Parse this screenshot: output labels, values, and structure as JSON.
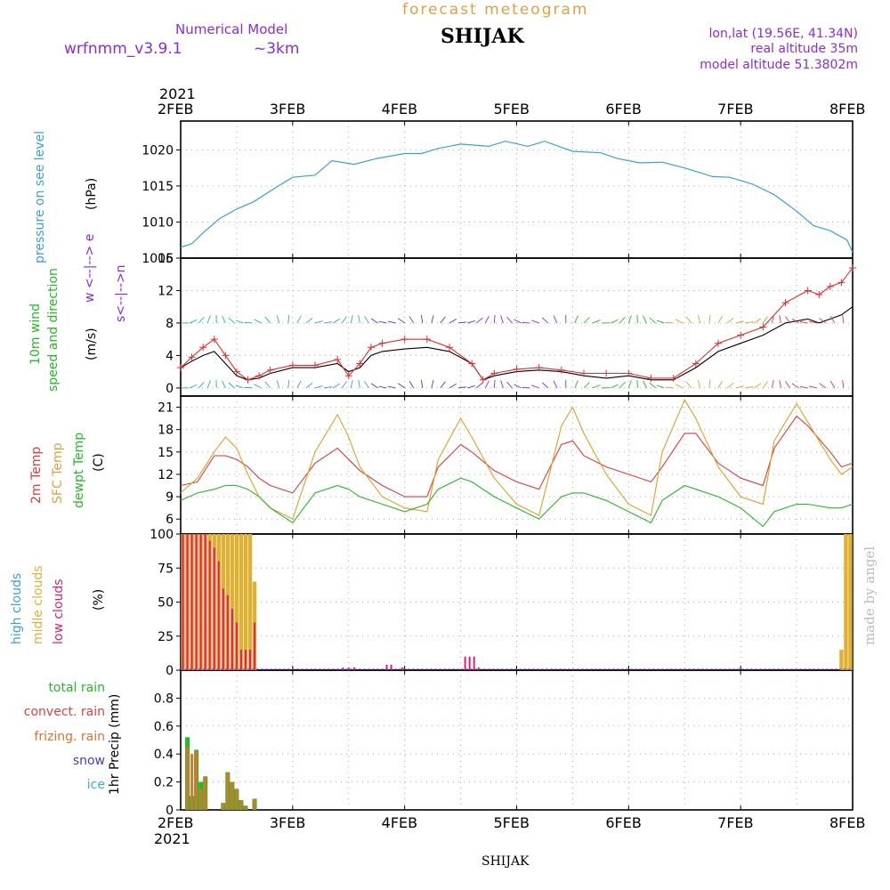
{
  "header": {
    "model_label": "Numerical Model",
    "model_version": "wrfnmm_v3.9.1",
    "resolution": "~3km",
    "title": "forecast meteogram",
    "station": "SHIJAK",
    "lonlat": "lon,lat (19.56E, 41.34N)",
    "real_altitude": "real altitude 35m",
    "model_altitude": "model altitude  51.3802m"
  },
  "colors": {
    "pressure": "#3aa0d8",
    "wind_label": "#22bb22",
    "wind_line": "#000000",
    "gust_line": "#e03030",
    "t2m": "#e03a3a",
    "tsfc": "#e0a020",
    "dewpt": "#22bb22",
    "cloud_high": "#3aa0d8",
    "cloud_mid": "#e0b030",
    "cloud_low": "#e0206a",
    "rain_total": "#22bb22",
    "rain_convect": "#e04040",
    "rain_freezing": "#e07030",
    "snow": "#4040c0",
    "ice": "#30b0d0",
    "header_purple": "#8a2be2"
  },
  "time_axis": {
    "year_label": "2021",
    "ticks": [
      "2FEB",
      "3FEB",
      "4FEB",
      "5FEB",
      "6FEB",
      "7FEB",
      "8FEB"
    ]
  },
  "labels": {
    "pressure_main": "pressure on see level",
    "pressure_unit": "(hPa)",
    "wind_main_1": "10m wind",
    "wind_main_2": "speed and direction",
    "wind_unit": "(m/s)",
    "compass": "s<--|-->n",
    "compass_ew": "w <--|--> e",
    "temp_1": "2m Temp",
    "temp_2": "SFC Temp",
    "temp_3": "dewpt Temp",
    "temp_unit": "(C)",
    "cloud_1": "high  clouds",
    "cloud_2": "midle clouds",
    "cloud_3": "low   clouds",
    "cloud_unit": "(%)",
    "precip_total": "total     rain",
    "precip_convect": "convect. rain",
    "precip_frz": "frizing. rain",
    "precip_snow": "snow",
    "precip_ice": "ice",
    "precip_unit": "1hr Precip (mm)",
    "credit": "made by angel"
  },
  "chart_data": [
    {
      "type": "line",
      "title": "pressure on see level",
      "ylabel": "(hPa)",
      "ylim": [
        1005,
        1024
      ],
      "yticks": [
        1005,
        1010,
        1015,
        1020
      ],
      "x_days": [
        0,
        0.1,
        0.2,
        0.35,
        0.5,
        0.65,
        0.85,
        1.0,
        1.2,
        1.35,
        1.55,
        1.75,
        2.0,
        2.15,
        2.3,
        2.5,
        2.75,
        2.9,
        3.1,
        3.25,
        3.5,
        3.75,
        3.9,
        4.1,
        4.3,
        4.5,
        4.75,
        4.9,
        5.1,
        5.3,
        5.5,
        5.65,
        5.8,
        5.95,
        6.0
      ],
      "series": [
        {
          "values": [
            1006.5,
            1007.0,
            1008.5,
            1010.5,
            1011.8,
            1012.8,
            1014.8,
            1016.2,
            1016.5,
            1018.5,
            1018.0,
            1018.8,
            1019.5,
            1019.5,
            1020.2,
            1020.8,
            1020.5,
            1021.2,
            1020.5,
            1021.2,
            1019.8,
            1019.6,
            1018.8,
            1018.2,
            1018.3,
            1017.5,
            1016.3,
            1016.2,
            1015.3,
            1013.8,
            1011.5,
            1009.5,
            1008.8,
            1007.5,
            1005.8
          ]
        }
      ]
    },
    {
      "type": "line",
      "title": "10m wind speed and direction",
      "ylabel": "(m/s)",
      "ylim": [
        -1,
        16
      ],
      "yticks": [
        0,
        4,
        8,
        12,
        16
      ],
      "x_days": [
        0,
        0.1,
        0.2,
        0.3,
        0.4,
        0.5,
        0.6,
        0.7,
        0.8,
        1.0,
        1.2,
        1.4,
        1.5,
        1.6,
        1.7,
        1.8,
        2.0,
        2.2,
        2.4,
        2.6,
        2.7,
        2.8,
        3.0,
        3.2,
        3.4,
        3.6,
        3.8,
        4.0,
        4.2,
        4.4,
        4.6,
        4.8,
        5.0,
        5.2,
        5.4,
        5.6,
        5.7,
        5.8,
        5.9,
        6.0
      ],
      "series": [
        {
          "name": "wind",
          "values": [
            2.5,
            3.3,
            4.0,
            4.5,
            3.0,
            1.5,
            1.0,
            1.2,
            1.8,
            2.5,
            2.5,
            3.0,
            2.0,
            2.5,
            4.0,
            4.5,
            4.8,
            5.0,
            4.5,
            3.0,
            1.0,
            1.5,
            2.0,
            2.2,
            2.0,
            1.5,
            1.2,
            1.5,
            1.0,
            1.0,
            2.5,
            4.5,
            5.5,
            6.5,
            8.0,
            8.5,
            8.0,
            8.5,
            9.0,
            10.0
          ]
        },
        {
          "name": "gust",
          "values": [
            2.5,
            3.8,
            5.0,
            6.0,
            4.0,
            2.0,
            1.0,
            1.5,
            2.2,
            2.8,
            2.8,
            3.5,
            1.5,
            3.0,
            5.0,
            5.5,
            6.0,
            6.0,
            5.0,
            3.0,
            1.0,
            1.8,
            2.3,
            2.5,
            2.2,
            1.8,
            1.8,
            1.8,
            1.2,
            1.2,
            3.0,
            5.5,
            6.5,
            7.5,
            10.5,
            12.0,
            11.5,
            12.5,
            13.0,
            14.8
          ]
        }
      ]
    },
    {
      "type": "line",
      "title": "2m Temp / SFC Temp / dewpt Temp",
      "ylabel": "(C)",
      "ylim": [
        4,
        22.5
      ],
      "yticks": [
        6,
        9,
        12,
        15,
        18,
        21
      ],
      "x_days": [
        0,
        0.15,
        0.3,
        0.4,
        0.5,
        0.6,
        0.7,
        0.8,
        1.0,
        1.2,
        1.4,
        1.5,
        1.6,
        1.8,
        2.0,
        2.2,
        2.3,
        2.5,
        2.6,
        2.8,
        3.0,
        3.2,
        3.4,
        3.5,
        3.6,
        3.8,
        4.0,
        4.2,
        4.3,
        4.5,
        4.6,
        4.8,
        5.0,
        5.2,
        5.3,
        5.5,
        5.6,
        5.8,
        5.9,
        6.0
      ],
      "series": [
        {
          "name": "2m Temp",
          "values": [
            10.5,
            11.0,
            14.5,
            14.5,
            14.0,
            13.0,
            11.5,
            10.5,
            9.5,
            13.5,
            15.5,
            14.0,
            12.5,
            10.5,
            9.0,
            9.0,
            13.0,
            16.0,
            15.0,
            12.5,
            11.0,
            10.0,
            16.0,
            16.5,
            14.5,
            13.0,
            12.0,
            11.0,
            13.0,
            17.5,
            17.5,
            13.5,
            11.5,
            10.5,
            15.5,
            19.8,
            18.5,
            15.0,
            13.0,
            13.5
          ]
        },
        {
          "name": "SFC Temp",
          "values": [
            9.5,
            11.5,
            15.0,
            17.0,
            15.5,
            12.0,
            9.0,
            7.5,
            6.0,
            15.0,
            20.0,
            17.0,
            13.0,
            9.0,
            7.5,
            7.0,
            14.0,
            19.5,
            17.0,
            11.5,
            8.0,
            6.5,
            18.5,
            21.0,
            17.5,
            12.0,
            8.0,
            6.5,
            15.0,
            22.0,
            19.5,
            13.0,
            9.0,
            8.0,
            16.5,
            21.5,
            19.0,
            14.0,
            12.0,
            13.0
          ]
        },
        {
          "name": "dewpt Temp",
          "values": [
            8.5,
            9.5,
            10.0,
            10.5,
            10.5,
            10.0,
            9.0,
            7.5,
            5.5,
            9.5,
            10.5,
            10.0,
            9.0,
            8.0,
            7.0,
            8.0,
            10.0,
            11.5,
            11.0,
            9.0,
            7.5,
            6.0,
            9.0,
            9.5,
            9.5,
            8.5,
            7.0,
            5.5,
            8.5,
            10.5,
            10.0,
            9.0,
            7.5,
            5.0,
            7.0,
            8.0,
            8.0,
            7.5,
            7.5,
            8.0
          ]
        }
      ]
    },
    {
      "type": "bar",
      "title": "high / midle / low clouds",
      "ylabel": "(%)",
      "ylim": [
        0,
        100
      ],
      "yticks": [
        0,
        25,
        50,
        75,
        100
      ],
      "x_days": [
        0.02,
        0.06,
        0.1,
        0.14,
        0.18,
        0.22,
        0.26,
        0.3,
        0.34,
        0.38,
        0.42,
        0.46,
        0.5,
        0.54,
        0.58,
        0.62,
        0.66,
        1.45,
        1.5,
        1.55,
        1.84,
        1.88,
        1.98,
        2.54,
        2.58,
        2.62,
        2.66,
        5.9,
        5.94,
        5.98
      ],
      "series": [
        {
          "name": "midle clouds",
          "values": [
            100,
            100,
            100,
            100,
            100,
            100,
            100,
            100,
            100,
            100,
            100,
            100,
            100,
            100,
            100,
            100,
            65,
            0,
            0,
            0,
            0,
            0,
            0,
            0,
            0,
            0,
            0,
            15,
            100,
            100
          ]
        },
        {
          "name": "low clouds",
          "values": [
            100,
            100,
            100,
            100,
            100,
            100,
            95,
            90,
            80,
            60,
            55,
            45,
            35,
            15,
            15,
            15,
            35,
            2,
            2,
            2,
            4,
            4,
            2,
            10,
            10,
            10,
            2,
            0,
            0,
            0
          ]
        },
        {
          "name": "high clouds",
          "values": [
            0,
            0,
            0,
            0,
            0,
            0,
            0,
            0,
            0,
            0,
            0,
            0,
            0,
            0,
            0,
            0,
            0,
            0,
            0,
            0,
            0,
            0,
            0,
            0,
            0,
            0,
            0,
            0,
            0,
            0
          ]
        }
      ]
    },
    {
      "type": "bar",
      "title": "1hr Precip (mm)",
      "ylabel": "1hr Precip (mm)",
      "ylim": [
        0,
        1.0
      ],
      "yticks": [
        0,
        0.2,
        0.4,
        0.6,
        0.8
      ],
      "x_days": [
        0.06,
        0.1,
        0.14,
        0.18,
        0.22,
        0.26,
        0.3,
        0.38,
        0.42,
        0.46,
        0.5,
        0.54,
        0.58,
        0.66
      ],
      "series": [
        {
          "name": "total rain",
          "values": [
            0.52,
            0.1,
            0.43,
            0.2,
            0.24,
            0,
            0,
            0.05,
            0.27,
            0.2,
            0.15,
            0.07,
            0.03,
            0.08
          ]
        },
        {
          "name": "convect. rain",
          "values": [
            0.45,
            0.4,
            0.42,
            0.15,
            0.24,
            0,
            0,
            0.05,
            0.27,
            0.2,
            0.15,
            0.07,
            0.03,
            0.08
          ]
        }
      ]
    }
  ]
}
